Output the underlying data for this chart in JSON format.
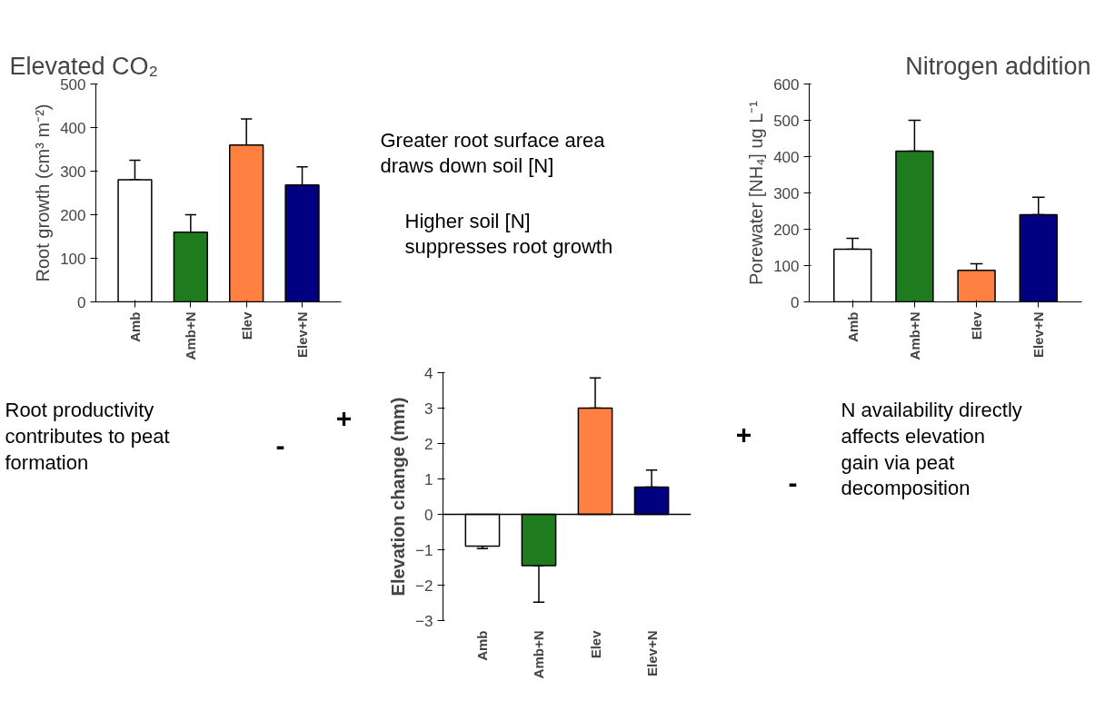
{
  "chart_data": [
    {
      "type": "bar",
      "title": "Elevated CO₂",
      "ylabel": "Root growth (cm³ m⁻²)",
      "categories": [
        "Amb",
        "Amb+N",
        "Elev",
        "Elev+N"
      ],
      "values": [
        280,
        160,
        360,
        268
      ],
      "colors": [
        "#ffffff",
        "#1e7b1e",
        "#ff8040",
        "#000080"
      ],
      "errors": [
        [
          280,
          325
        ],
        [
          160,
          200
        ],
        [
          360,
          420
        ],
        [
          268,
          310
        ]
      ],
      "ylim": [
        0,
        500
      ],
      "yticks": [
        0,
        100,
        200,
        300,
        400,
        500
      ],
      "annotations": [
        "Greater root surface area\ndraws down soil [N]",
        "Higher soil [N]\nsuppresses root growth"
      ]
    },
    {
      "type": "bar",
      "title": "Nitrogen addition",
      "ylabel": "Porewater [NH₄] ug L⁻¹",
      "categories": [
        "Amb",
        "Amb+N",
        "Elev",
        "Elev+N"
      ],
      "values": [
        145,
        415,
        87,
        240
      ],
      "colors": [
        "#ffffff",
        "#1e7b1e",
        "#ff8040",
        "#000080"
      ],
      "errors": [
        [
          145,
          175
        ],
        [
          415,
          500
        ],
        [
          87,
          105
        ],
        [
          240,
          288
        ]
      ],
      "ylim": [
        0,
        600
      ],
      "yticks": [
        0,
        100,
        200,
        300,
        400,
        500,
        600
      ]
    },
    {
      "type": "bar",
      "ylabel": "Elevation change (mm)",
      "categories": [
        "Amb",
        "Amb+N",
        "Elev",
        "Elev+N"
      ],
      "values": [
        -0.9,
        -1.45,
        3.0,
        0.77
      ],
      "colors": [
        "#ffffff",
        "#1e7b1e",
        "#ff8040",
        "#000080"
      ],
      "errors": [
        [
          -0.97,
          -0.9
        ],
        [
          -2.48,
          -1.45
        ],
        [
          3.0,
          3.85
        ],
        [
          0.77,
          1.25
        ]
      ],
      "ylim": [
        -3,
        4
      ],
      "yticks": [
        -3,
        -2,
        -1,
        0,
        1,
        2,
        3,
        4
      ],
      "annotations": [
        "Root productivity\ncontributes to peat\nformation",
        "+",
        "-",
        "N availability directly\naffects elevation\ngain via peat\ndecomposition",
        "+",
        "-"
      ]
    }
  ]
}
